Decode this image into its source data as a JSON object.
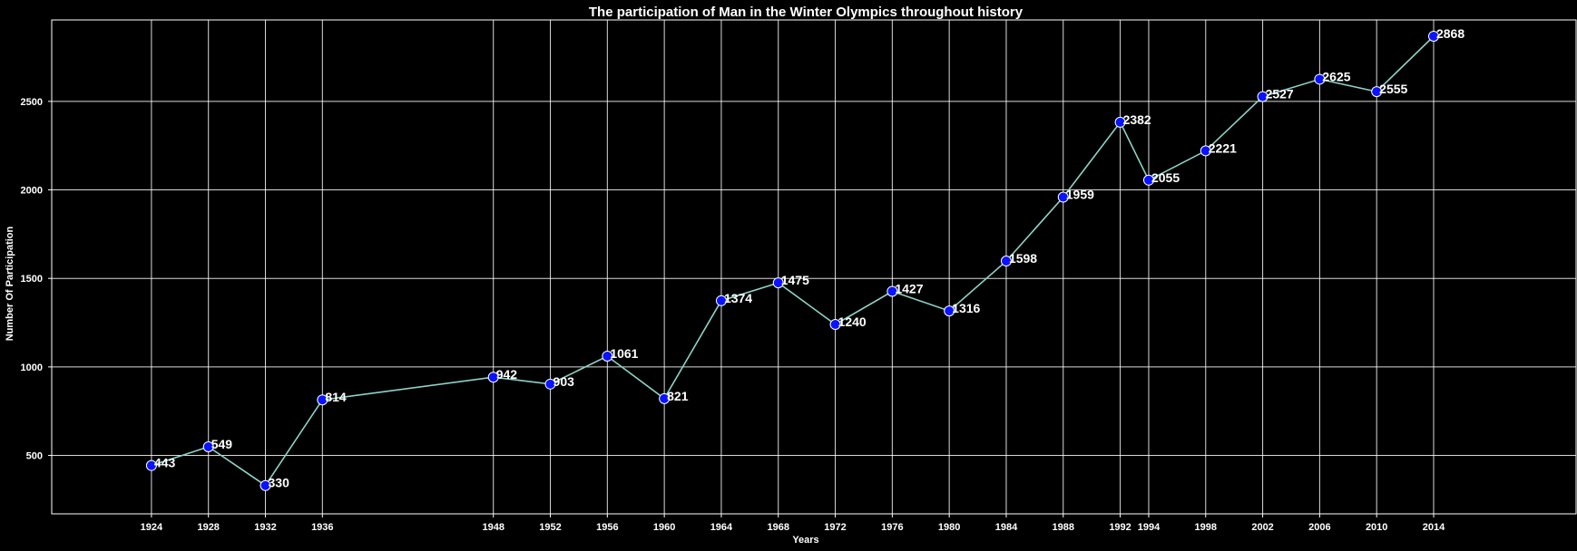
{
  "chart_data": {
    "type": "line",
    "title": "The participation of Man in the Winter Olympics throughout history",
    "xlabel": "Years",
    "ylabel": "Number Of Participation",
    "x": [
      1924,
      1928,
      1932,
      1936,
      1948,
      1952,
      1956,
      1960,
      1964,
      1968,
      1972,
      1976,
      1980,
      1984,
      1988,
      1992,
      1994,
      1998,
      2002,
      2006,
      2010,
      2014
    ],
    "series": [
      {
        "values": [
          443,
          549,
          330,
          814,
          942,
          903,
          1061,
          821,
          1374,
          1475,
          1240,
          1427,
          1316,
          1598,
          1959,
          2382,
          2055,
          2221,
          2527,
          2625,
          2555,
          2868
        ]
      }
    ],
    "yticks": [
      500,
      1000,
      1500,
      2000,
      2500
    ],
    "xlim": [
      1917,
      2024
    ],
    "ylim": [
      170,
      2960
    ],
    "grid": true,
    "colors": {
      "background": "#000000",
      "line": "#8dd3c7",
      "marker_fill": "#0a12ff",
      "marker_edge": "#ffffff",
      "text": "#ffffff",
      "grid": "#ffffff"
    }
  }
}
